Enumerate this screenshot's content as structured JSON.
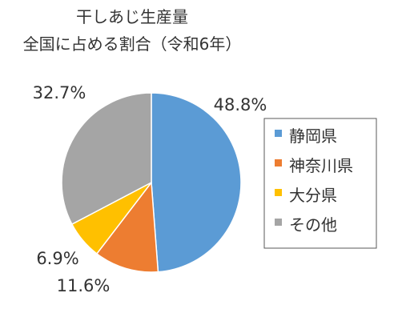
{
  "chart_data": {
    "type": "pie",
    "title": [
      "干しあじ生産量",
      "全国に占める割合（令和6年）"
    ],
    "slices": [
      {
        "label": "静岡県",
        "value": 48.8,
        "display": "48.8%",
        "color": "#5B9BD5"
      },
      {
        "label": "神奈川県",
        "value": 11.6,
        "display": "11.6%",
        "color": "#ED7D31"
      },
      {
        "label": "大分県",
        "value": 6.9,
        "display": "6.9%",
        "color": "#FFC000"
      },
      {
        "label": "その他",
        "value": 32.7,
        "display": "32.7%",
        "color": "#A5A5A5"
      }
    ],
    "legend_position": "right"
  }
}
